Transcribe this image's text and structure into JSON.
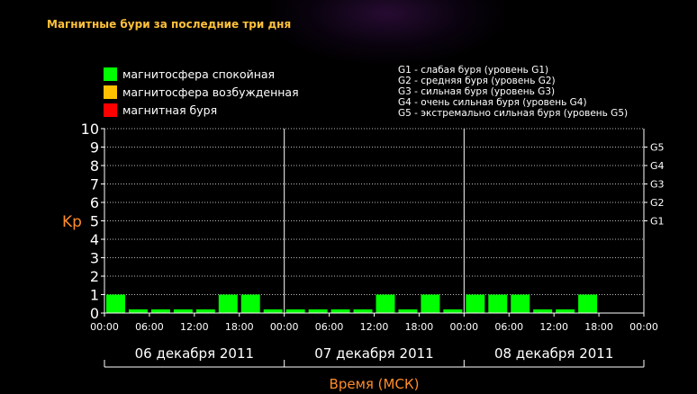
{
  "title": "Магнитные бури за последние три дня",
  "legend": [
    {
      "label": "магнитосфера спокойная",
      "color": "#00ff00"
    },
    {
      "label": "магнитосфера возбужденная",
      "color": "#ffc000"
    },
    {
      "label": "магнитная буря",
      "color": "#ff0000"
    }
  ],
  "storm_levels": [
    "G1 - слабая буря (уровень G1)",
    "G2 - средняя буря (уровень G2)",
    "G3 - сильная буря (уровень G3)",
    "G4 - очень сильная буря (уровень G4)",
    "G5 - экстремально сильная буря (уровень G5)"
  ],
  "chart_data": {
    "type": "bar",
    "ylabel": "Kp",
    "xlabel": "Время (МСК)",
    "ylim": [
      0,
      10
    ],
    "yticks": [
      "0",
      "1",
      "2",
      "3",
      "4",
      "5",
      "6",
      "7",
      "8",
      "9",
      "10"
    ],
    "g_labels": [
      {
        "label": "G1",
        "kp": 5
      },
      {
        "label": "G2",
        "kp": 6
      },
      {
        "label": "G3",
        "kp": 7
      },
      {
        "label": "G4",
        "kp": 8
      },
      {
        "label": "G5",
        "kp": 9
      }
    ],
    "x_time_labels": [
      "00:00",
      "06:00",
      "12:00",
      "18:00",
      "00:00",
      "06:00",
      "12:00",
      "18:00",
      "00:00",
      "06:00",
      "12:00",
      "18:00",
      "00:00"
    ],
    "days": [
      "06 декабря 2011",
      "07 декабря 2011",
      "08 декабря 2011"
    ],
    "bar_color": "#00ff00",
    "grid": true,
    "values": [
      1,
      0.2,
      0.2,
      0.2,
      0.2,
      1,
      1,
      0.2,
      0.2,
      0.2,
      0.2,
      0.2,
      1,
      0.2,
      1,
      0.2,
      1,
      1,
      1,
      0.2,
      0.2,
      1,
      0,
      0
    ]
  }
}
